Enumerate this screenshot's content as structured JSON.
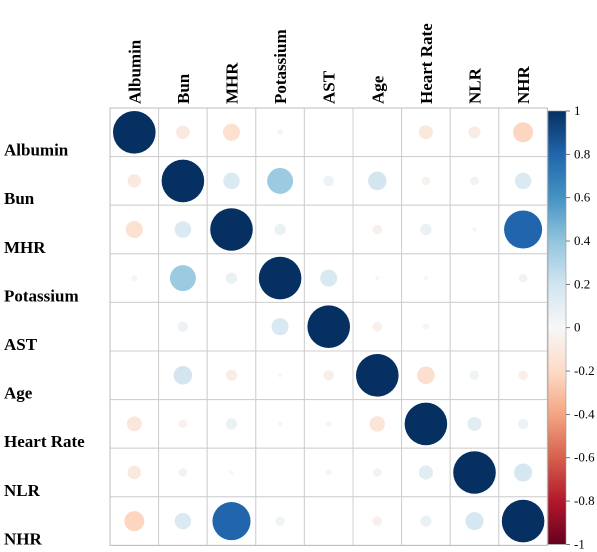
{
  "chart_data": {
    "type": "heatmap",
    "variables": [
      "Albumin",
      "Bun",
      "MHR",
      "Potassium",
      "AST",
      "Age",
      "Heart Rate",
      "NLR",
      "NHR"
    ],
    "matrix": [
      [
        1.0,
        -0.1,
        -0.16,
        -0.02,
        0.0,
        0.0,
        -0.11,
        -0.08,
        -0.22
      ],
      [
        -0.1,
        1.0,
        0.15,
        0.37,
        0.06,
        0.19,
        -0.04,
        0.04,
        0.15
      ],
      [
        -0.16,
        0.15,
        1.0,
        0.07,
        0.0,
        -0.05,
        0.07,
        -0.01,
        0.8
      ],
      [
        -0.02,
        0.37,
        0.07,
        1.0,
        0.16,
        -0.01,
        -0.01,
        0.0,
        0.04
      ],
      [
        0.0,
        0.06,
        0.0,
        0.16,
        1.0,
        -0.05,
        0.02,
        0.0,
        0.0
      ],
      [
        0.0,
        0.19,
        -0.07,
        -0.01,
        -0.06,
        1.0,
        -0.17,
        0.05,
        -0.05
      ],
      [
        -0.12,
        -0.04,
        0.07,
        -0.01,
        0.02,
        -0.13,
        1.0,
        0.11,
        0.06
      ],
      [
        -0.1,
        0.04,
        -0.01,
        0.0,
        0.02,
        0.04,
        0.11,
        1.0,
        0.18
      ],
      [
        -0.22,
        0.15,
        0.8,
        0.05,
        0.0,
        -0.05,
        0.07,
        0.18,
        1.0
      ]
    ],
    "colorbar_ticks": [
      "1",
      "0.8",
      "0.6",
      "0.4",
      "0.2",
      "0",
      "-0.2",
      "-0.4",
      "-0.6",
      "-0.8",
      "-1"
    ],
    "range": [
      -1,
      1
    ],
    "grid": true,
    "legend": "right"
  }
}
